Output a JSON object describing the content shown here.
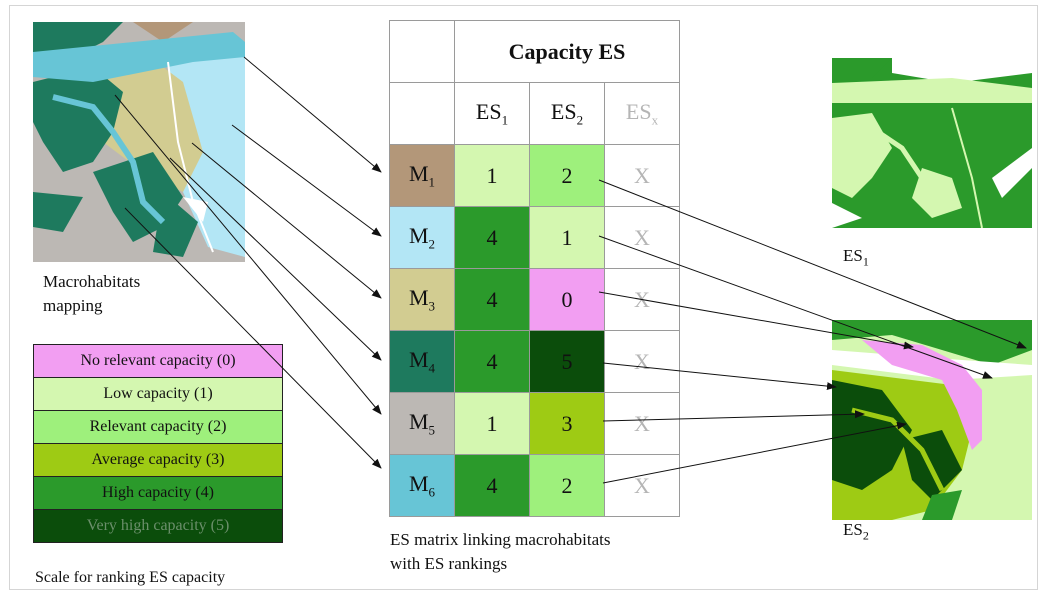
{
  "colors": {
    "cap0": "#f29ef2",
    "cap1": "#d4f7b0",
    "cap2": "#9ef07c",
    "cap3": "#9ecb14",
    "cap4": "#2b9a2b",
    "cap5": "#0b4d0b",
    "M1": "#b39779",
    "M2": "#b3e6f5",
    "M3": "#d2cc91",
    "M4": "#1e7a5e",
    "M5": "#bcb8b4",
    "M6": "#67c5d6"
  },
  "captions": {
    "macro_line1": "Macrohabitats",
    "macro_line2": "mapping",
    "scale": "Scale for ranking ES capacity",
    "matrix_line1": "ES matrix linking macrohabitats",
    "matrix_line2": "with ES rankings",
    "es1": "ES",
    "es1_sub": "1",
    "es2": "ES",
    "es2_sub": "2"
  },
  "legend": [
    {
      "label": "No relevant capacity (0)",
      "color": "#f29ef2",
      "text": "#111"
    },
    {
      "label": "Low capacity (1)",
      "color": "#d4f7b0",
      "text": "#111"
    },
    {
      "label": "Relevant capacity (2)",
      "color": "#9ef07c",
      "text": "#111"
    },
    {
      "label": "Average capacity (3)",
      "color": "#9ecb14",
      "text": "#111"
    },
    {
      "label": "High capacity (4)",
      "color": "#2b9a2b",
      "text": "#111"
    },
    {
      "label": "Very high capacity (5)",
      "color": "#0b4d0b",
      "text": "#6b8f6b"
    }
  ],
  "matrix": {
    "title": "Capacity ES",
    "columns": [
      {
        "base": "ES",
        "sub": "1",
        "muted": false
      },
      {
        "base": "ES",
        "sub": "2",
        "muted": false
      },
      {
        "base": "ES",
        "sub": "x",
        "muted": true
      }
    ],
    "rows": [
      {
        "base": "M",
        "sub": "1",
        "color": "#b39779",
        "es1": "1",
        "es1_color": "#d4f7b0",
        "es2": "2",
        "es2_color": "#9ef07c",
        "esx": "X"
      },
      {
        "base": "M",
        "sub": "2",
        "color": "#b3e6f5",
        "es1": "4",
        "es1_color": "#2b9a2b",
        "es2": "1",
        "es2_color": "#d4f7b0",
        "esx": "X"
      },
      {
        "base": "M",
        "sub": "3",
        "color": "#d2cc91",
        "es1": "4",
        "es1_color": "#2b9a2b",
        "es2": "0",
        "es2_color": "#f29ef2",
        "esx": "X"
      },
      {
        "base": "M",
        "sub": "4",
        "color": "#1e7a5e",
        "es1": "4",
        "es1_color": "#2b9a2b",
        "es2": "5",
        "es2_color": "#0b4d0b",
        "esx": "X"
      },
      {
        "base": "M",
        "sub": "5",
        "color": "#bcb8b4",
        "es1": "1",
        "es1_color": "#d4f7b0",
        "es2": "3",
        "es2_color": "#9ecb14",
        "esx": "X"
      },
      {
        "base": "M",
        "sub": "6",
        "color": "#67c5d6",
        "es1": "4",
        "es1_color": "#2b9a2b",
        "es2": "2",
        "es2_color": "#9ef07c",
        "esx": "X"
      }
    ]
  }
}
